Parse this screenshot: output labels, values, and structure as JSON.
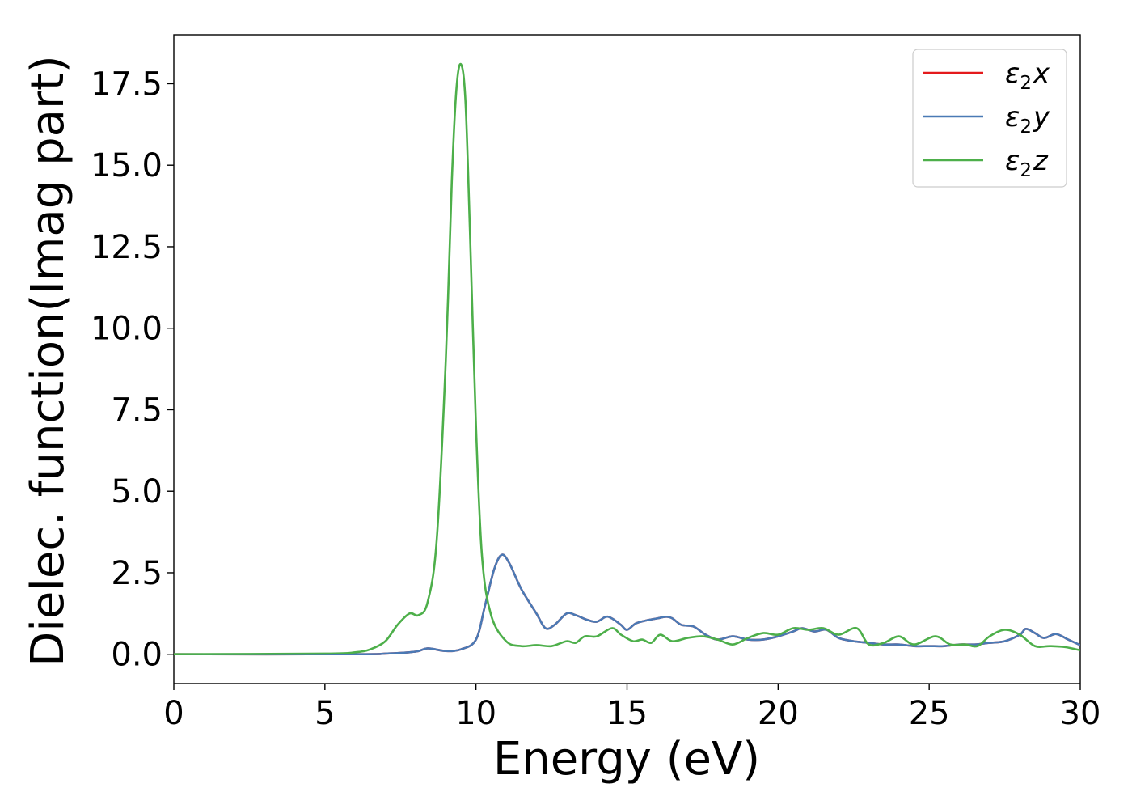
{
  "chart_data": {
    "type": "line",
    "title": "",
    "xlabel": "Energy (eV)",
    "ylabel": "Dielec. function(Imag part)",
    "xlim": [
      0,
      30
    ],
    "ylim": [
      -0.9,
      19.0
    ],
    "xticks": [
      0,
      5,
      10,
      15,
      20,
      25,
      30
    ],
    "xtick_labels": [
      "0",
      "5",
      "10",
      "15",
      "20",
      "25",
      "30"
    ],
    "yticks": [
      0.0,
      2.5,
      5.0,
      7.5,
      10.0,
      12.5,
      15.0,
      17.5
    ],
    "ytick_labels": [
      "0.0",
      "2.5",
      "5.0",
      "7.5",
      "10.0",
      "12.5",
      "15.0",
      "17.5"
    ],
    "grid": false,
    "legend_position": "top-right",
    "series": [
      {
        "name": "ε2x",
        "legend_base": "ε",
        "legend_sub": "2",
        "legend_var": "x",
        "color": "#e41a1c",
        "x": [
          0,
          6,
          7,
          8,
          8.4,
          9,
          9.5,
          10,
          10.3,
          10.6,
          10.85,
          11.1,
          11.5,
          12,
          12.3,
          12.6,
          13,
          13.3,
          13.7,
          14,
          14.3,
          14.5,
          14.8,
          15,
          15.3,
          15.7,
          16,
          16.3,
          16.5,
          16.8,
          17.2,
          17.6,
          18,
          18.5,
          19,
          19.5,
          20,
          20.5,
          20.8,
          21.2,
          21.6,
          22,
          22.5,
          23,
          23.5,
          24,
          24.5,
          25,
          25.5,
          26,
          26.5,
          27,
          27.5,
          28,
          28.2,
          28.5,
          28.8,
          29.2,
          29.6,
          30
        ],
        "y": [
          0.0,
          0.0,
          0.02,
          0.08,
          0.18,
          0.1,
          0.15,
          0.45,
          1.5,
          2.6,
          3.05,
          2.8,
          2.0,
          1.25,
          0.8,
          0.9,
          1.25,
          1.2,
          1.05,
          1.0,
          1.15,
          1.1,
          0.9,
          0.75,
          0.95,
          1.05,
          1.1,
          1.15,
          1.1,
          0.9,
          0.85,
          0.6,
          0.45,
          0.55,
          0.45,
          0.45,
          0.55,
          0.7,
          0.8,
          0.7,
          0.75,
          0.5,
          0.4,
          0.35,
          0.3,
          0.3,
          0.25,
          0.25,
          0.25,
          0.3,
          0.3,
          0.35,
          0.4,
          0.6,
          0.78,
          0.65,
          0.5,
          0.62,
          0.45,
          0.28
        ]
      },
      {
        "name": "ε2y",
        "legend_base": "ε",
        "legend_sub": "2",
        "legend_var": "y",
        "color": "#4a7ab5",
        "x": [
          0,
          6,
          7,
          8,
          8.4,
          9,
          9.5,
          10,
          10.3,
          10.6,
          10.85,
          11.1,
          11.5,
          12,
          12.3,
          12.6,
          13,
          13.3,
          13.7,
          14,
          14.3,
          14.5,
          14.8,
          15,
          15.3,
          15.7,
          16,
          16.3,
          16.5,
          16.8,
          17.2,
          17.6,
          18,
          18.5,
          19,
          19.5,
          20,
          20.5,
          20.8,
          21.2,
          21.6,
          22,
          22.5,
          23,
          23.5,
          24,
          24.5,
          25,
          25.5,
          26,
          26.5,
          27,
          27.5,
          28,
          28.2,
          28.5,
          28.8,
          29.2,
          29.6,
          30
        ],
        "y": [
          0.0,
          0.0,
          0.02,
          0.08,
          0.18,
          0.1,
          0.15,
          0.45,
          1.5,
          2.6,
          3.05,
          2.8,
          2.0,
          1.25,
          0.8,
          0.9,
          1.25,
          1.2,
          1.05,
          1.0,
          1.15,
          1.1,
          0.9,
          0.75,
          0.95,
          1.05,
          1.1,
          1.15,
          1.1,
          0.9,
          0.85,
          0.6,
          0.45,
          0.55,
          0.45,
          0.45,
          0.55,
          0.7,
          0.8,
          0.7,
          0.75,
          0.5,
          0.4,
          0.35,
          0.3,
          0.3,
          0.25,
          0.25,
          0.25,
          0.3,
          0.3,
          0.35,
          0.4,
          0.6,
          0.78,
          0.65,
          0.5,
          0.62,
          0.45,
          0.28
        ]
      },
      {
        "name": "ε2z",
        "legend_base": "ε",
        "legend_sub": "2",
        "legend_var": "z",
        "color": "#4daf4a",
        "x": [
          0,
          5,
          6,
          6.5,
          7,
          7.4,
          7.8,
          8.1,
          8.4,
          8.7,
          9.0,
          9.2,
          9.35,
          9.5,
          9.65,
          9.8,
          10.0,
          10.2,
          10.5,
          11,
          11.5,
          12,
          12.5,
          13,
          13.3,
          13.6,
          14,
          14.5,
          14.8,
          15.2,
          15.5,
          15.8,
          16.1,
          16.5,
          17,
          17.5,
          18,
          18.5,
          19,
          19.5,
          20,
          20.5,
          21,
          21.5,
          22,
          22.6,
          23,
          23.5,
          24,
          24.5,
          25.2,
          25.7,
          26.2,
          26.6,
          27,
          27.5,
          28,
          28.5,
          29,
          29.5,
          30
        ],
        "y": [
          0.0,
          0.02,
          0.06,
          0.15,
          0.4,
          0.9,
          1.25,
          1.2,
          1.6,
          3.5,
          9.0,
          14.5,
          17.3,
          18.1,
          17.0,
          13.0,
          7.0,
          3.0,
          1.2,
          0.4,
          0.25,
          0.28,
          0.25,
          0.4,
          0.35,
          0.55,
          0.55,
          0.8,
          0.6,
          0.4,
          0.45,
          0.35,
          0.6,
          0.4,
          0.5,
          0.55,
          0.45,
          0.3,
          0.5,
          0.65,
          0.6,
          0.8,
          0.75,
          0.8,
          0.6,
          0.8,
          0.3,
          0.35,
          0.55,
          0.3,
          0.55,
          0.3,
          0.3,
          0.25,
          0.55,
          0.75,
          0.6,
          0.25,
          0.25,
          0.22,
          0.12
        ]
      }
    ]
  }
}
